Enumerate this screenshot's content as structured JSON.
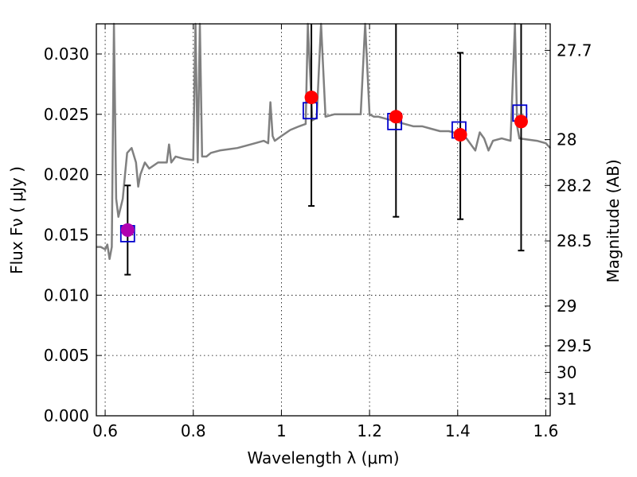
{
  "chart_data": {
    "type": "scatter",
    "xlabel": "Wavelength  λ (μm)",
    "ylabel": "Flux  Fν  ( μJy )",
    "y2label": "Magnitude (AB)",
    "xlim": [
      0.58,
      1.61
    ],
    "ylim": [
      0.0,
      0.0325
    ],
    "grid": true,
    "x_ticks": [
      "0.6",
      "0.8",
      "1",
      "1.2",
      "1.4",
      "1.6"
    ],
    "x_tick_values": [
      0.6,
      0.8,
      1.0,
      1.2,
      1.4,
      1.6
    ],
    "y_ticks": [
      "0.000",
      "0.005",
      "0.010",
      "0.015",
      "0.020",
      "0.025",
      "0.030"
    ],
    "y_tick_values": [
      0,
      0.005,
      0.01,
      0.015,
      0.02,
      0.025,
      0.03
    ],
    "magnitude_ticks": [
      {
        "label": "27.7",
        "flux": 0.0303
      },
      {
        "label": "28",
        "flux": 0.0229
      },
      {
        "label": "28.2",
        "flux": 0.0191
      },
      {
        "label": "28.5",
        "flux": 0.0145
      },
      {
        "label": "29",
        "flux": 0.0091
      },
      {
        "label": "29.5",
        "flux": 0.0058
      },
      {
        "label": "30",
        "flux": 0.0036
      },
      {
        "label": "31",
        "flux": 0.0014
      }
    ],
    "model_spectrum": {
      "color": "#808080",
      "x": [
        0.58,
        0.59,
        0.6,
        0.605,
        0.61,
        0.615,
        0.62,
        0.625,
        0.63,
        0.64,
        0.645,
        0.65,
        0.66,
        0.67,
        0.675,
        0.68,
        0.69,
        0.7,
        0.72,
        0.74,
        0.745,
        0.75,
        0.76,
        0.78,
        0.8,
        0.805,
        0.81,
        0.815,
        0.82,
        0.83,
        0.84,
        0.86,
        0.88,
        0.9,
        0.92,
        0.94,
        0.96,
        0.97,
        0.975,
        0.98,
        0.985,
        1.0,
        1.02,
        1.04,
        1.055,
        1.06,
        1.07,
        1.08,
        1.09,
        1.1,
        1.12,
        1.14,
        1.16,
        1.18,
        1.19,
        1.2,
        1.21,
        1.22,
        1.24,
        1.26,
        1.28,
        1.3,
        1.32,
        1.34,
        1.36,
        1.38,
        1.4,
        1.42,
        1.44,
        1.45,
        1.46,
        1.47,
        1.48,
        1.5,
        1.52,
        1.53,
        1.535,
        1.54,
        1.56,
        1.58,
        1.6,
        1.61
      ],
      "y": [
        0.014,
        0.014,
        0.0138,
        0.0142,
        0.013,
        0.014,
        0.0325,
        0.018,
        0.0165,
        0.018,
        0.02,
        0.0218,
        0.0222,
        0.021,
        0.019,
        0.02,
        0.021,
        0.0205,
        0.021,
        0.021,
        0.0225,
        0.021,
        0.0215,
        0.0213,
        0.0212,
        0.0325,
        0.021,
        0.0325,
        0.0215,
        0.0215,
        0.0218,
        0.022,
        0.0221,
        0.0222,
        0.0224,
        0.0226,
        0.0228,
        0.0226,
        0.026,
        0.0232,
        0.0228,
        0.0232,
        0.0237,
        0.024,
        0.0242,
        0.0325,
        0.0245,
        0.0247,
        0.0325,
        0.0248,
        0.025,
        0.025,
        0.025,
        0.025,
        0.0325,
        0.025,
        0.0248,
        0.0248,
        0.0246,
        0.0244,
        0.0242,
        0.024,
        0.024,
        0.0238,
        0.0236,
        0.0236,
        0.0234,
        0.023,
        0.022,
        0.0235,
        0.023,
        0.022,
        0.0228,
        0.023,
        0.0228,
        0.0325,
        0.024,
        0.023,
        0.0229,
        0.0228,
        0.0226,
        0.0222
      ]
    },
    "observed_points": {
      "color": "#ff0000",
      "points": [
        {
          "x": 0.651,
          "y": 0.0154,
          "err_low": 0.0117,
          "err_high": 0.0191
        },
        {
          "x": 1.068,
          "y": 0.0264,
          "err_low": 0.0174,
          "err_high": 0.0325
        },
        {
          "x": 1.26,
          "y": 0.0248,
          "err_low": 0.0165,
          "err_high": 0.0325
        },
        {
          "x": 1.406,
          "y": 0.0233,
          "err_low": 0.0163,
          "err_high": 0.0301
        },
        {
          "x": 1.544,
          "y": 0.0244,
          "err_low": 0.0137,
          "err_high": 0.0325
        }
      ]
    },
    "model_band_points": {
      "color": "#0000cc",
      "points": [
        {
          "x": 0.651,
          "y": 0.0151
        },
        {
          "x": 1.065,
          "y": 0.0253
        },
        {
          "x": 1.257,
          "y": 0.0244
        },
        {
          "x": 1.403,
          "y": 0.0237
        },
        {
          "x": 1.541,
          "y": 0.0251
        }
      ]
    }
  }
}
